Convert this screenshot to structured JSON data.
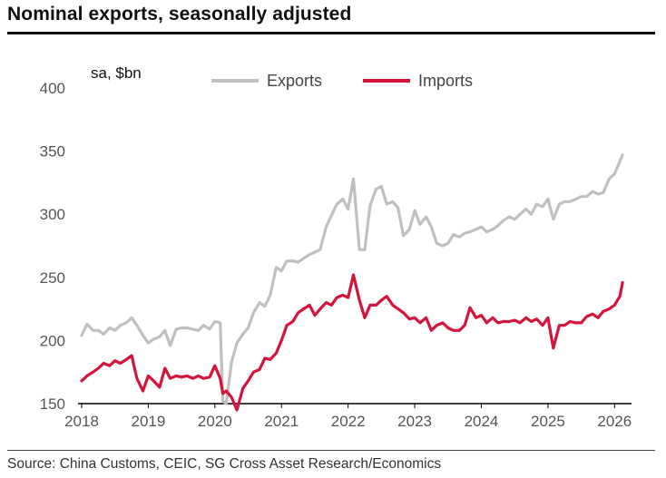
{
  "title": "Nominal exports, seasonally adjusted",
  "source": "Source: China Customs, CEIC, SG Cross Asset Research/Economics",
  "chart_data": {
    "type": "line",
    "unit_label": "sa, $bn",
    "ylim": [
      150,
      400
    ],
    "yticks": [
      "400",
      "350",
      "300",
      "250",
      "200",
      "150"
    ],
    "ytick_values": [
      400,
      350,
      300,
      250,
      200,
      150
    ],
    "xlim": [
      2018,
      2026.2
    ],
    "xticks": [
      "2018",
      "2019",
      "2020",
      "2021",
      "2022",
      "2023",
      "2024",
      "2025",
      "2026"
    ],
    "xtick_values": [
      2018,
      2019,
      2020,
      2021,
      2022,
      2023,
      2024,
      2025,
      2026
    ],
    "legend_position": "top",
    "series": [
      {
        "name": "Exports",
        "color": "#c4bfbf",
        "points": [
          [
            2018.0,
            204
          ],
          [
            2018.08,
            213
          ],
          [
            2018.17,
            208
          ],
          [
            2018.25,
            208
          ],
          [
            2018.33,
            205
          ],
          [
            2018.42,
            210
          ],
          [
            2018.5,
            208
          ],
          [
            2018.58,
            212
          ],
          [
            2018.67,
            214
          ],
          [
            2018.75,
            218
          ],
          [
            2018.83,
            212
          ],
          [
            2018.92,
            204
          ],
          [
            2019.0,
            198
          ],
          [
            2019.08,
            201
          ],
          [
            2019.17,
            203
          ],
          [
            2019.25,
            208
          ],
          [
            2019.33,
            196
          ],
          [
            2019.42,
            209
          ],
          [
            2019.5,
            210
          ],
          [
            2019.58,
            210
          ],
          [
            2019.67,
            209
          ],
          [
            2019.75,
            208
          ],
          [
            2019.83,
            212
          ],
          [
            2019.92,
            209
          ],
          [
            2020.0,
            215
          ],
          [
            2020.08,
            214
          ],
          [
            2020.12,
            152
          ],
          [
            2020.17,
            150
          ],
          [
            2020.25,
            183
          ],
          [
            2020.33,
            198
          ],
          [
            2020.42,
            205
          ],
          [
            2020.5,
            210
          ],
          [
            2020.58,
            222
          ],
          [
            2020.67,
            230
          ],
          [
            2020.75,
            227
          ],
          [
            2020.83,
            236
          ],
          [
            2020.92,
            258
          ],
          [
            2021.0,
            255
          ],
          [
            2021.08,
            263
          ],
          [
            2021.17,
            263
          ],
          [
            2021.25,
            262
          ],
          [
            2021.33,
            265
          ],
          [
            2021.42,
            268
          ],
          [
            2021.5,
            270
          ],
          [
            2021.58,
            272
          ],
          [
            2021.67,
            290
          ],
          [
            2021.75,
            299
          ],
          [
            2021.83,
            308
          ],
          [
            2021.92,
            312
          ],
          [
            2022.0,
            304
          ],
          [
            2022.08,
            328
          ],
          [
            2022.17,
            272
          ],
          [
            2022.25,
            272
          ],
          [
            2022.33,
            307
          ],
          [
            2022.42,
            320
          ],
          [
            2022.5,
            322
          ],
          [
            2022.58,
            308
          ],
          [
            2022.67,
            310
          ],
          [
            2022.75,
            305
          ],
          [
            2022.83,
            283
          ],
          [
            2022.92,
            288
          ],
          [
            2023.0,
            303
          ],
          [
            2023.08,
            292
          ],
          [
            2023.17,
            298
          ],
          [
            2023.25,
            290
          ],
          [
            2023.33,
            277
          ],
          [
            2023.42,
            275
          ],
          [
            2023.5,
            277
          ],
          [
            2023.58,
            284
          ],
          [
            2023.67,
            282
          ],
          [
            2023.75,
            285
          ],
          [
            2023.83,
            286
          ],
          [
            2023.92,
            288
          ],
          [
            2024.0,
            290
          ],
          [
            2024.08,
            286
          ],
          [
            2024.17,
            288
          ],
          [
            2024.25,
            291
          ],
          [
            2024.33,
            295
          ],
          [
            2024.42,
            298
          ],
          [
            2024.5,
            296
          ],
          [
            2024.58,
            300
          ],
          [
            2024.67,
            304
          ],
          [
            2024.75,
            300
          ],
          [
            2024.83,
            308
          ],
          [
            2024.92,
            306
          ],
          [
            2025.0,
            312
          ],
          [
            2025.08,
            296
          ],
          [
            2025.17,
            308
          ],
          [
            2025.25,
            310
          ],
          [
            2025.33,
            310
          ],
          [
            2025.42,
            312
          ],
          [
            2025.5,
            314
          ],
          [
            2025.58,
            314
          ],
          [
            2025.67,
            318
          ],
          [
            2025.75,
            316
          ],
          [
            2025.83,
            317
          ],
          [
            2025.92,
            328
          ],
          [
            2026.0,
            332
          ],
          [
            2026.08,
            342
          ],
          [
            2026.12,
            347
          ]
        ]
      },
      {
        "name": "Imports",
        "color": "#d4143c",
        "points": [
          [
            2018.0,
            168
          ],
          [
            2018.08,
            172
          ],
          [
            2018.17,
            175
          ],
          [
            2018.25,
            178
          ],
          [
            2018.33,
            182
          ],
          [
            2018.42,
            180
          ],
          [
            2018.5,
            184
          ],
          [
            2018.58,
            182
          ],
          [
            2018.67,
            185
          ],
          [
            2018.75,
            188
          ],
          [
            2018.83,
            170
          ],
          [
            2018.92,
            160
          ],
          [
            2019.0,
            172
          ],
          [
            2019.08,
            168
          ],
          [
            2019.17,
            163
          ],
          [
            2019.25,
            178
          ],
          [
            2019.33,
            170
          ],
          [
            2019.42,
            172
          ],
          [
            2019.5,
            171
          ],
          [
            2019.58,
            172
          ],
          [
            2019.67,
            170
          ],
          [
            2019.75,
            172
          ],
          [
            2019.83,
            170
          ],
          [
            2019.92,
            171
          ],
          [
            2020.0,
            180
          ],
          [
            2020.08,
            170
          ],
          [
            2020.12,
            158
          ],
          [
            2020.17,
            160
          ],
          [
            2020.25,
            155
          ],
          [
            2020.33,
            145
          ],
          [
            2020.42,
            162
          ],
          [
            2020.5,
            168
          ],
          [
            2020.58,
            175
          ],
          [
            2020.67,
            177
          ],
          [
            2020.75,
            186
          ],
          [
            2020.83,
            185
          ],
          [
            2020.92,
            190
          ],
          [
            2021.0,
            200
          ],
          [
            2021.08,
            212
          ],
          [
            2021.17,
            215
          ],
          [
            2021.25,
            222
          ],
          [
            2021.33,
            225
          ],
          [
            2021.42,
            228
          ],
          [
            2021.5,
            220
          ],
          [
            2021.58,
            225
          ],
          [
            2021.67,
            230
          ],
          [
            2021.75,
            228
          ],
          [
            2021.83,
            234
          ],
          [
            2021.92,
            236
          ],
          [
            2022.0,
            234
          ],
          [
            2022.08,
            252
          ],
          [
            2022.17,
            232
          ],
          [
            2022.25,
            218
          ],
          [
            2022.33,
            228
          ],
          [
            2022.42,
            228
          ],
          [
            2022.5,
            232
          ],
          [
            2022.58,
            235
          ],
          [
            2022.67,
            228
          ],
          [
            2022.75,
            225
          ],
          [
            2022.83,
            222
          ],
          [
            2022.92,
            217
          ],
          [
            2023.0,
            218
          ],
          [
            2023.08,
            214
          ],
          [
            2023.17,
            218
          ],
          [
            2023.25,
            208
          ],
          [
            2023.33,
            212
          ],
          [
            2023.42,
            214
          ],
          [
            2023.5,
            210
          ],
          [
            2023.58,
            208
          ],
          [
            2023.67,
            208
          ],
          [
            2023.75,
            212
          ],
          [
            2023.83,
            226
          ],
          [
            2023.92,
            218
          ],
          [
            2024.0,
            220
          ],
          [
            2024.08,
            214
          ],
          [
            2024.17,
            218
          ],
          [
            2024.25,
            214
          ],
          [
            2024.33,
            215
          ],
          [
            2024.42,
            215
          ],
          [
            2024.5,
            216
          ],
          [
            2024.58,
            214
          ],
          [
            2024.67,
            218
          ],
          [
            2024.75,
            215
          ],
          [
            2024.83,
            217
          ],
          [
            2024.92,
            212
          ],
          [
            2025.0,
            218
          ],
          [
            2025.08,
            194
          ],
          [
            2025.17,
            212
          ],
          [
            2025.25,
            212
          ],
          [
            2025.33,
            215
          ],
          [
            2025.42,
            214
          ],
          [
            2025.5,
            214
          ],
          [
            2025.58,
            219
          ],
          [
            2025.67,
            221
          ],
          [
            2025.75,
            218
          ],
          [
            2025.83,
            223
          ],
          [
            2025.92,
            225
          ],
          [
            2026.0,
            228
          ],
          [
            2026.08,
            235
          ],
          [
            2026.12,
            246
          ]
        ]
      }
    ]
  }
}
